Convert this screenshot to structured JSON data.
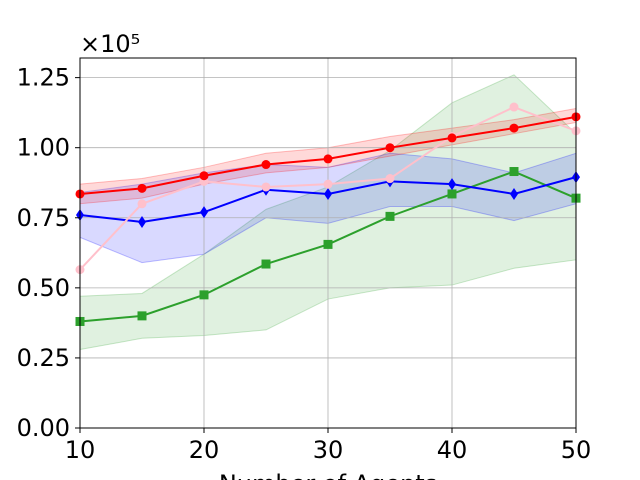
{
  "chart_data": {
    "type": "line",
    "xlabel": "Number of Agents",
    "ylabel": "",
    "scale_label": "×10⁵",
    "xlim": [
      10,
      50
    ],
    "ylim": [
      0,
      1.32
    ],
    "x_ticks": [
      10,
      20,
      30,
      40,
      50
    ],
    "x_tick_labels": [
      "10",
      "20",
      "30",
      "40",
      "50"
    ],
    "y_ticks": [
      0,
      0.25,
      0.5,
      0.75,
      1.0,
      1.25
    ],
    "y_tick_labels": [
      "0.00",
      "0.25",
      "0.50",
      "0.75",
      "1.00",
      "1.25"
    ],
    "grid": true,
    "x": [
      10,
      15,
      20,
      25,
      30,
      35,
      40,
      45,
      50
    ],
    "series": [
      {
        "color": "#2ca02c",
        "marker": "square",
        "values": [
          0.38,
          0.4,
          0.475,
          0.585,
          0.655,
          0.755,
          0.835,
          0.915,
          0.82
        ],
        "band_lower": [
          0.28,
          0.32,
          0.33,
          0.35,
          0.46,
          0.5,
          0.51,
          0.57,
          0.6
        ],
        "band_upper": [
          0.47,
          0.48,
          0.62,
          0.78,
          0.86,
          0.99,
          1.16,
          1.26,
          1.05
        ]
      },
      {
        "color": "#0000ff",
        "marker": "diamond",
        "values": [
          0.76,
          0.735,
          0.77,
          0.85,
          0.835,
          0.88,
          0.87,
          0.835,
          0.895
        ],
        "band_lower": [
          0.68,
          0.59,
          0.62,
          0.75,
          0.73,
          0.79,
          0.79,
          0.74,
          0.8
        ],
        "band_upper": [
          0.84,
          0.87,
          0.91,
          0.94,
          0.93,
          0.98,
          0.96,
          0.91,
          0.98
        ]
      },
      {
        "color": "#ffc0cb",
        "marker": "circle",
        "values": [
          0.565,
          0.8,
          0.88,
          0.86,
          0.87,
          0.89,
          1.04,
          1.145,
          1.06
        ],
        "band_lower": [],
        "band_upper": []
      },
      {
        "color": "#ff0000",
        "marker": "circle",
        "values": [
          0.835,
          0.855,
          0.9,
          0.94,
          0.96,
          1.0,
          1.035,
          1.07,
          1.11
        ],
        "band_lower": [
          0.8,
          0.82,
          0.87,
          0.91,
          0.93,
          0.97,
          1.01,
          1.05,
          1.09
        ],
        "band_upper": [
          0.87,
          0.89,
          0.93,
          0.98,
          1.0,
          1.04,
          1.07,
          1.1,
          1.14
        ]
      }
    ]
  }
}
